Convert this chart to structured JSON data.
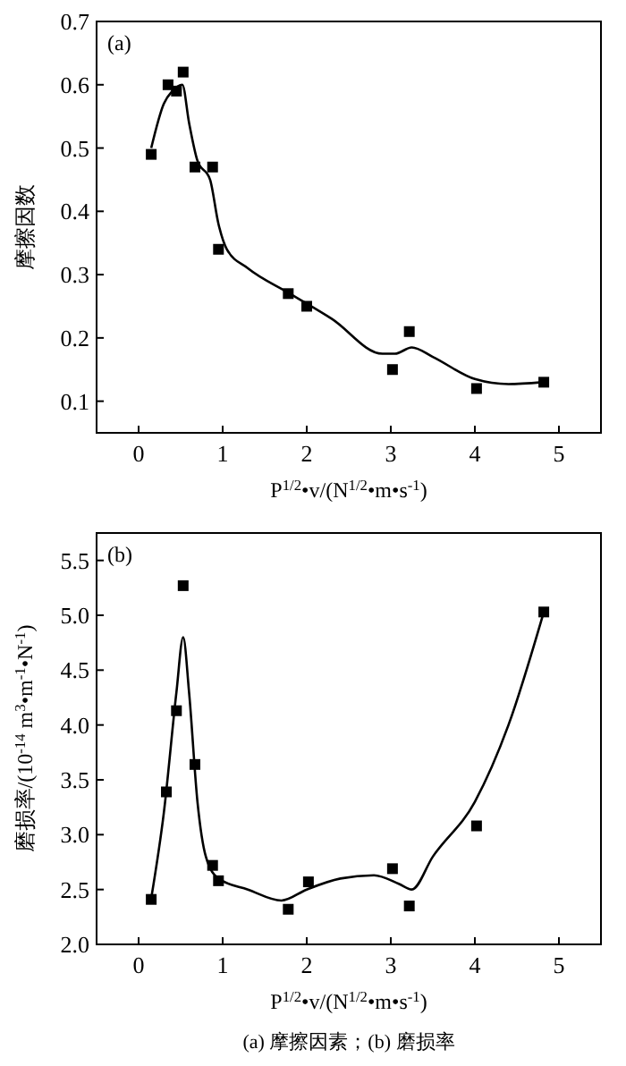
{
  "chart_data": [
    {
      "type": "scatter",
      "title": "(a)",
      "xlabel": "P$^{1/2}$•v/(N$^{1/2}$•m•s$^{-1}$)",
      "ylabel": "摩擦因数",
      "xlim": [
        -0.5,
        5.5
      ],
      "xticks": [
        0,
        1,
        2,
        3,
        4,
        5
      ],
      "ylim": [
        0.05,
        0.7
      ],
      "yticks": [
        0.1,
        0.2,
        0.3,
        0.4,
        0.5,
        0.6,
        0.7
      ],
      "series": [
        {
          "marker": "square",
          "color": "#000000",
          "x": [
            0.15,
            0.35,
            0.45,
            0.53,
            0.67,
            0.88,
            0.95,
            1.78,
            2.0,
            3.02,
            3.22,
            4.02,
            4.82
          ],
          "values": [
            0.49,
            0.6,
            0.59,
            0.62,
            0.47,
            0.47,
            0.34,
            0.27,
            0.25,
            0.15,
            0.21,
            0.12,
            0.13
          ]
        },
        {
          "type": "line",
          "marker": "none",
          "color": "#000000",
          "x": [
            0.15,
            0.3,
            0.4,
            0.52,
            0.6,
            0.7,
            0.85,
            0.95,
            1.05,
            1.3,
            1.8,
            2.3,
            2.9,
            3.05,
            3.25,
            3.5,
            4.0,
            4.4,
            4.8
          ],
          "values": [
            0.5,
            0.57,
            0.59,
            0.6,
            0.54,
            0.48,
            0.45,
            0.38,
            0.34,
            0.31,
            0.27,
            0.23,
            0.175,
            0.175,
            0.185,
            0.17,
            0.135,
            0.127,
            0.13
          ]
        }
      ]
    },
    {
      "type": "scatter",
      "title": "(b)",
      "xlabel": "P$^{1/2}$•v/(N$^{1/2}$•m•s$^{-1}$)",
      "ylabel": "磨损率/(10$^{-14}$ m$^{3}$•m$^{-1}$•N$^{-1}$)",
      "xlim": [
        -0.5,
        5.5
      ],
      "xticks": [
        0,
        1,
        2,
        3,
        4,
        5
      ],
      "ylim": [
        2.0,
        5.75
      ],
      "yticks": [
        {
          "value": 2,
          "label": "2.0"
        },
        2.5,
        {
          "value": 3,
          "label": "3.0"
        },
        3.5,
        {
          "value": 4,
          "label": "4.0"
        },
        4.5,
        {
          "value": 5,
          "label": "5.0"
        },
        5.5
      ],
      "annotations": [
        "(a) 摩擦因素；(b) 磨损率"
      ],
      "series": [
        {
          "marker": "square",
          "color": "#000000",
          "x": [
            0.15,
            0.33,
            0.45,
            0.53,
            0.67,
            0.88,
            0.95,
            1.78,
            2.02,
            3.02,
            3.22,
            4.02,
            4.82
          ],
          "values": [
            2.41,
            3.39,
            4.13,
            5.27,
            3.64,
            2.72,
            2.58,
            2.32,
            2.57,
            2.69,
            2.35,
            3.08,
            5.03
          ]
        },
        {
          "type": "line",
          "marker": "none",
          "color": "#000000",
          "x": [
            0.15,
            0.3,
            0.45,
            0.53,
            0.6,
            0.7,
            0.8,
            0.95,
            1.3,
            1.7,
            2.0,
            2.4,
            2.8,
            3.1,
            3.25,
            3.5,
            4.0,
            4.4,
            4.82
          ],
          "values": [
            2.42,
            3.2,
            4.3,
            4.8,
            4.3,
            3.3,
            2.8,
            2.6,
            2.5,
            2.4,
            2.5,
            2.6,
            2.63,
            2.55,
            2.5,
            2.8,
            3.3,
            4.0,
            5.03
          ]
        }
      ]
    }
  ]
}
